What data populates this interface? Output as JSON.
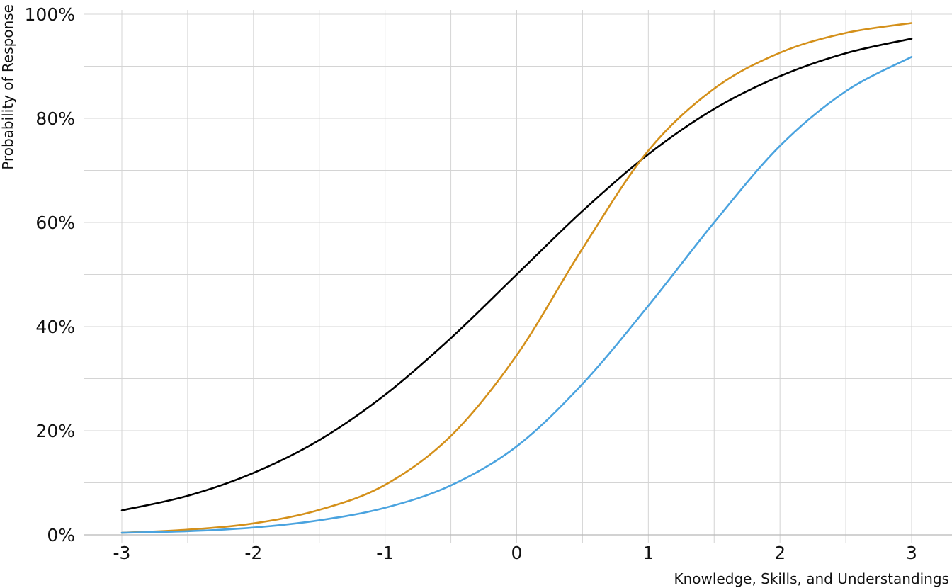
{
  "chart_data": {
    "type": "line",
    "title": "",
    "xlabel": "Knowledge, Skills, and Understandings",
    "ylabel": "Probability of Response",
    "xlim": [
      -3,
      3
    ],
    "ylim": [
      0,
      1
    ],
    "x_major_ticks": [
      -3,
      -2,
      -1,
      0,
      1,
      2,
      3
    ],
    "x_tick_labels": [
      "-3",
      "-2",
      "-1",
      "0",
      "1",
      "2",
      "3"
    ],
    "x_minor_ticks": [
      -2.5,
      -1.5,
      -0.5,
      0.5,
      1.5,
      2.5
    ],
    "y_major_ticks": [
      0,
      0.2,
      0.4,
      0.6,
      0.8,
      1.0
    ],
    "y_tick_labels": [
      "0%",
      "20%",
      "40%",
      "60%",
      "80%",
      "100%"
    ],
    "y_minor_ticks": [
      0.1,
      0.3,
      0.5,
      0.7,
      0.9
    ],
    "grid": true,
    "legend": "none",
    "x": [
      -3.0,
      -2.5,
      -2.0,
      -1.5,
      -1.0,
      -0.5,
      0.0,
      0.5,
      1.0,
      1.5,
      2.0,
      2.5,
      3.0
    ],
    "series": [
      {
        "color": "#000000",
        "values": [
          0.047,
          0.075,
          0.119,
          0.182,
          0.269,
          0.378,
          0.5,
          0.622,
          0.731,
          0.818,
          0.881,
          0.925,
          0.953
        ]
      },
      {
        "color": "#d4901a",
        "values": [
          0.004,
          0.01,
          0.022,
          0.048,
          0.096,
          0.19,
          0.345,
          0.55,
          0.738,
          0.857,
          0.926,
          0.964,
          0.983
        ]
      },
      {
        "color": "#4aa3df",
        "values": [
          0.004,
          0.007,
          0.014,
          0.028,
          0.052,
          0.095,
          0.17,
          0.29,
          0.44,
          0.6,
          0.747,
          0.852,
          0.918
        ]
      }
    ]
  }
}
